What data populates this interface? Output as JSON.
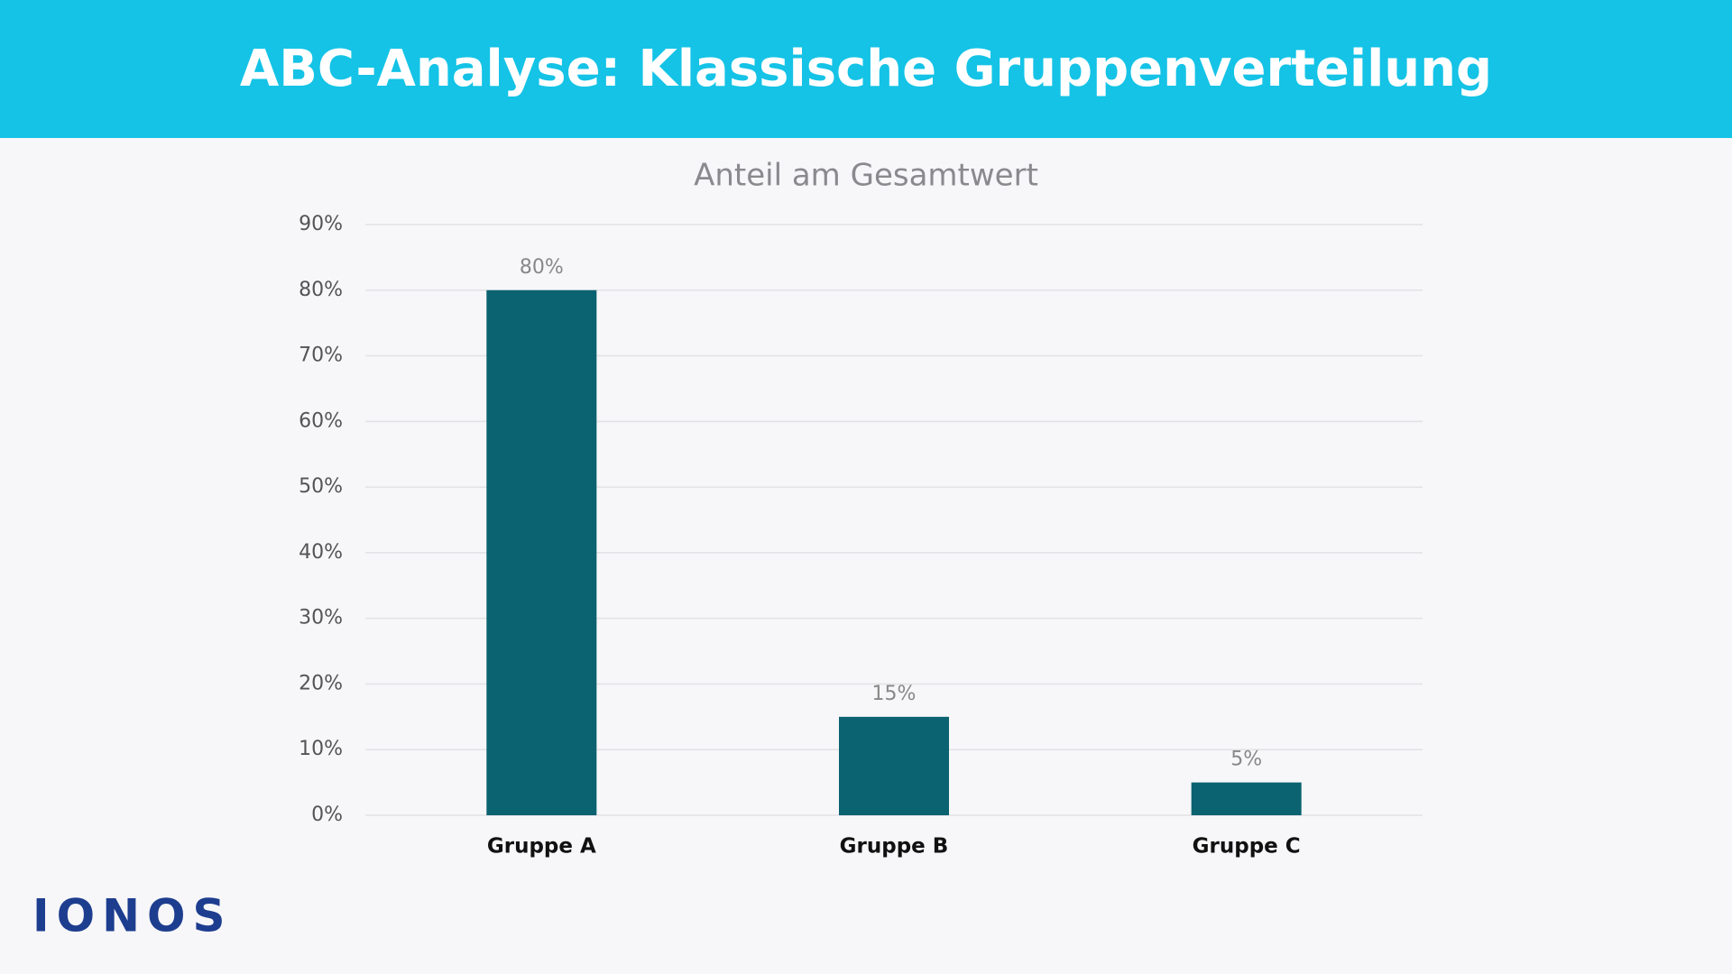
{
  "chart_data": {
    "type": "bar",
    "title": "ABC-Analyse: Klassische Gruppenverteilung",
    "subtitle": "Anteil am Gesamtwert",
    "categories": [
      "Gruppe A",
      "Gruppe B",
      "Gruppe C"
    ],
    "values": [
      80,
      15,
      5
    ],
    "value_labels": [
      "80%",
      "15%",
      "5%"
    ],
    "color": "#0b6270",
    "ylim": [
      0,
      90
    ],
    "yticks": [
      {
        "value": 0,
        "label": "0%"
      },
      {
        "value": 10,
        "label": "10%"
      },
      {
        "value": 20,
        "label": "20%"
      },
      {
        "value": 30,
        "label": "30%"
      },
      {
        "value": 40,
        "label": "40%"
      },
      {
        "value": 50,
        "label": "50%"
      },
      {
        "value": 60,
        "label": "60%"
      },
      {
        "value": 70,
        "label": "70%"
      },
      {
        "value": 80,
        "label": "80%"
      },
      {
        "value": 90,
        "label": "90%"
      }
    ],
    "grid": true
  },
  "brand": "IONOS"
}
